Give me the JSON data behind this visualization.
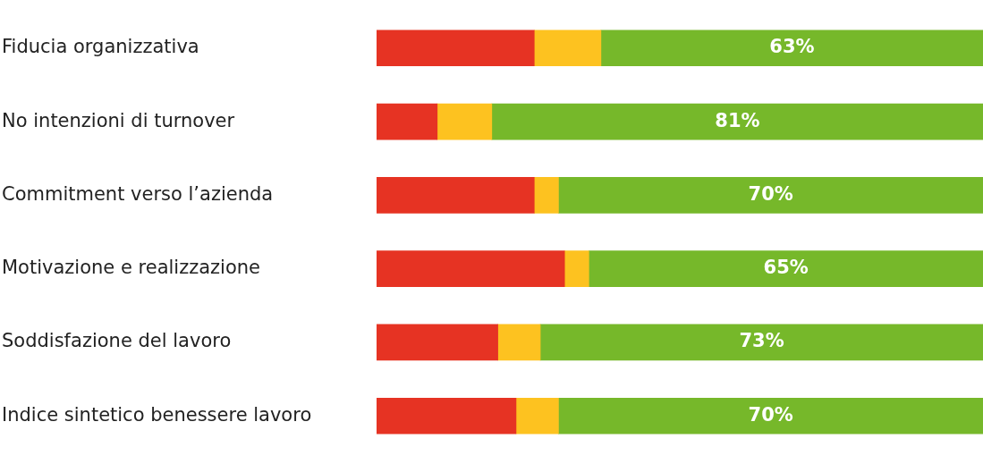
{
  "chart_data": {
    "type": "bar",
    "orientation": "horizontal",
    "stacked": true,
    "categories": [
      "Fiducia organizzativa",
      "No intenzioni di turnover",
      "Commitment verso l’azienda",
      "Motivazione e realizzazione",
      "Soddisfazione del lavoro",
      "Indice sintetico benessere lavoro"
    ],
    "series": [
      {
        "color": "#e63323",
        "values": [
          26,
          10,
          26,
          31,
          20,
          23
        ]
      },
      {
        "color": "#fdc220",
        "values": [
          11,
          9,
          4,
          4,
          7,
          7
        ]
      },
      {
        "color": "#76b82a",
        "values": [
          63,
          81,
          70,
          65,
          73,
          70
        ],
        "value_labels": [
          "63%",
          "81%",
          "70%",
          "65%",
          "73%",
          "70%"
        ]
      }
    ],
    "xlim": [
      0,
      100
    ],
    "tick_labels": "y",
    "grid": false,
    "legend": false
  }
}
